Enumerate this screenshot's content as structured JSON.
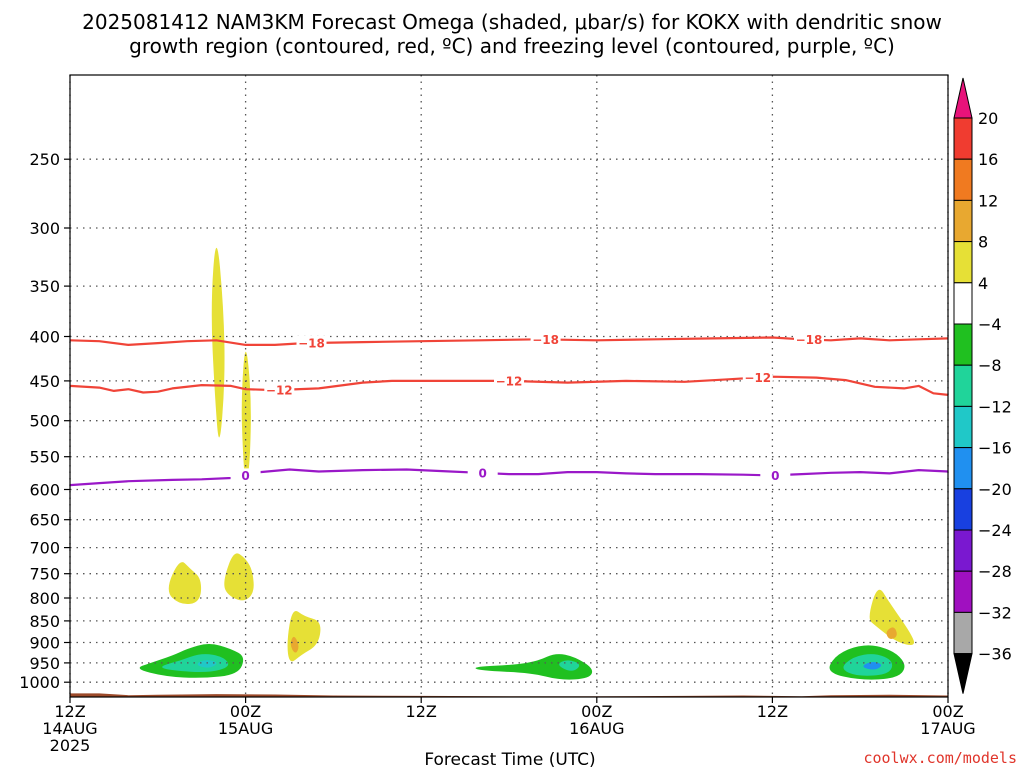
{
  "title_line1": "2025081412 NAM3KM Forecast Omega (shaded, μbar/s) for KOKX with dendritic snow",
  "title_line2": "growth region (contoured, red, ºC) and freezing level (contoured, purple, ºC)",
  "credit": "coolwx.com/models",
  "colors": {
    "background": "#ffffff",
    "ground": "#9c4a2a",
    "isotherm_red": "#f04438",
    "freezing_purple": "#9a18c8",
    "grid": "#555555"
  },
  "chart_data": {
    "type": "heatmap",
    "title": "2025081412 NAM3KM Forecast Omega (shaded, μbar/s) for KOKX with dendritic snow growth region (contoured, red, ºC) and freezing level (contoured, purple, ºC)",
    "xlabel": "Forecast Time (UTC)",
    "ylabel": "",
    "xlim": [
      0,
      60
    ],
    "ylim": [
      1040,
      200
    ],
    "y_scale": "log-pressure",
    "grid": true,
    "x_ticks": [
      {
        "h": 0,
        "line1": "12Z",
        "line2": "14AUG",
        "line3": "2025"
      },
      {
        "h": 12,
        "line1": "00Z",
        "line2": "15AUG",
        "line3": ""
      },
      {
        "h": 24,
        "line1": "12Z",
        "line2": "",
        "line3": ""
      },
      {
        "h": 36,
        "line1": "00Z",
        "line2": "16AUG",
        "line3": ""
      },
      {
        "h": 48,
        "line1": "12Z",
        "line2": "",
        "line3": ""
      },
      {
        "h": 60,
        "line1": "00Z",
        "line2": "17AUG",
        "line3": ""
      }
    ],
    "y_ticks": [
      250,
      300,
      350,
      400,
      450,
      500,
      550,
      600,
      650,
      700,
      750,
      800,
      850,
      900,
      950,
      1000
    ],
    "colorbar": {
      "labels": [
        "20",
        "16",
        "12",
        "8",
        "4",
        "−4",
        "−8",
        "−12",
        "−16",
        "−20",
        "−24",
        "−28",
        "−32",
        "−36"
      ],
      "colors": [
        "#e8137a",
        "#f03c30",
        "#f07a20",
        "#e8a830",
        "#e6e036",
        "#ffffff",
        "#20c020",
        "#20d49a",
        "#20c8c8",
        "#2090f0",
        "#1840e0",
        "#7a18d0",
        "#a010c0",
        "#a8a8a8",
        "#000000"
      ]
    },
    "contour_lines": [
      {
        "name": "-18",
        "label": "−18",
        "color": "#f04438",
        "points": [
          [
            0,
            404
          ],
          [
            2,
            405
          ],
          [
            4,
            409
          ],
          [
            6,
            407
          ],
          [
            8,
            405
          ],
          [
            10,
            404
          ],
          [
            12,
            409
          ],
          [
            14,
            409
          ],
          [
            16,
            407
          ],
          [
            20,
            406
          ],
          [
            24,
            405
          ],
          [
            28,
            404
          ],
          [
            32,
            403
          ],
          [
            36,
            404
          ],
          [
            40,
            403
          ],
          [
            44,
            402
          ],
          [
            48,
            401
          ],
          [
            50,
            403
          ],
          [
            52,
            404
          ],
          [
            54,
            402
          ],
          [
            56,
            404
          ],
          [
            58,
            403
          ],
          [
            60,
            402
          ]
        ],
        "label_h": [
          16.5,
          32.5,
          50.5
        ]
      },
      {
        "name": "-12",
        "label": "−12",
        "color": "#f04438",
        "points": [
          [
            0,
            456
          ],
          [
            2,
            458
          ],
          [
            3,
            462
          ],
          [
            4,
            460
          ],
          [
            5,
            464
          ],
          [
            6,
            463
          ],
          [
            7,
            459
          ],
          [
            9,
            455
          ],
          [
            11,
            456
          ],
          [
            12,
            460
          ],
          [
            14,
            461
          ],
          [
            17,
            459
          ],
          [
            20,
            452
          ],
          [
            22,
            450
          ],
          [
            26,
            450
          ],
          [
            30,
            450
          ],
          [
            34,
            452
          ],
          [
            38,
            450
          ],
          [
            42,
            451
          ],
          [
            45,
            448
          ],
          [
            48,
            445
          ],
          [
            51,
            446
          ],
          [
            53,
            449
          ],
          [
            55,
            457
          ],
          [
            57,
            459
          ],
          [
            58,
            456
          ],
          [
            59,
            465
          ],
          [
            60,
            467
          ]
        ],
        "label_h": [
          14.3,
          30.0,
          47.0
        ]
      },
      {
        "name": "0",
        "label": "0",
        "color": "#9a18c8",
        "points": [
          [
            0,
            593
          ],
          [
            2,
            590
          ],
          [
            4,
            587
          ],
          [
            7,
            585
          ],
          [
            9,
            584
          ],
          [
            11,
            582
          ],
          [
            12,
            578
          ],
          [
            13,
            573
          ],
          [
            15,
            569
          ],
          [
            17,
            572
          ],
          [
            20,
            570
          ],
          [
            23,
            569
          ],
          [
            26,
            572
          ],
          [
            28,
            574
          ],
          [
            30,
            576
          ],
          [
            32,
            576
          ],
          [
            34,
            573
          ],
          [
            36,
            573
          ],
          [
            38,
            575
          ],
          [
            40,
            576
          ],
          [
            43,
            576
          ],
          [
            46,
            577
          ],
          [
            48,
            578
          ],
          [
            50,
            576
          ],
          [
            52,
            574
          ],
          [
            54,
            573
          ],
          [
            56,
            575
          ],
          [
            58,
            570
          ],
          [
            60,
            572
          ]
        ],
        "label_h": [
          12.0,
          28.2,
          48.2
        ]
      }
    ],
    "omega_regions": [
      {
        "name": "yellow-upper-left",
        "level": "4 to 8",
        "points": [
          [
            10.5,
            760
          ],
          [
            11.2,
            705
          ],
          [
            12.0,
            720
          ],
          [
            12.5,
            745
          ],
          [
            12.6,
            790
          ],
          [
            11.8,
            810
          ],
          [
            10.6,
            790
          ]
        ]
      },
      {
        "name": "yellow-upper-left-b",
        "level": "4 to 8",
        "points": [
          [
            6.5,
            785
          ],
          [
            7.5,
            720
          ],
          [
            8.2,
            740
          ],
          [
            9.0,
            760
          ],
          [
            8.9,
            810
          ],
          [
            7.5,
            815
          ]
        ]
      },
      {
        "name": "yellow-tall-column-a",
        "level": "4 to 8",
        "points": [
          [
            9.6,
            370
          ],
          [
            10.0,
            300
          ],
          [
            10.5,
            370
          ],
          [
            10.6,
            450
          ],
          [
            10.2,
            545
          ],
          [
            9.9,
            470
          ]
        ]
      },
      {
        "name": "yellow-tall-column-b",
        "level": "4 to 8",
        "points": [
          [
            11.7,
            470
          ],
          [
            12.0,
            400
          ],
          [
            12.4,
            470
          ],
          [
            12.3,
            560
          ],
          [
            12.0,
            600
          ],
          [
            11.8,
            540
          ]
        ]
      },
      {
        "name": "yellow-mid-left",
        "level": "4 to 8",
        "points": [
          [
            14.8,
            900
          ],
          [
            15.2,
            820
          ],
          [
            16.0,
            840
          ],
          [
            17.2,
            850
          ],
          [
            17.0,
            905
          ],
          [
            15.8,
            930
          ],
          [
            15.0,
            955
          ]
        ]
      },
      {
        "name": "orange-mid-left",
        "level": "8 to 12",
        "points": [
          [
            15.0,
            905
          ],
          [
            15.3,
            880
          ],
          [
            15.7,
            910
          ],
          [
            15.4,
            930
          ]
        ]
      },
      {
        "name": "yellow-right",
        "level": "4 to 8",
        "points": [
          [
            54.5,
            845
          ],
          [
            55.2,
            770
          ],
          [
            56.0,
            810
          ],
          [
            57.5,
            880
          ],
          [
            57.8,
            910
          ],
          [
            56.5,
            900
          ],
          [
            55.0,
            860
          ]
        ]
      },
      {
        "name": "orange-right",
        "level": "8 to 12",
        "points": [
          [
            55.7,
            875
          ],
          [
            56.3,
            860
          ],
          [
            56.6,
            885
          ],
          [
            56.0,
            895
          ]
        ]
      },
      {
        "name": "green-left",
        "level": "-4 to -8",
        "points": [
          [
            4.4,
            965
          ],
          [
            5.5,
            950
          ],
          [
            7.0,
            932
          ],
          [
            8.0,
            915
          ],
          [
            9.5,
            900
          ],
          [
            11.0,
            915
          ],
          [
            12.0,
            935
          ],
          [
            11.5,
            980
          ],
          [
            9.0,
            990
          ],
          [
            6.5,
            985
          ]
        ]
      },
      {
        "name": "teal-left",
        "level": "-8 to -12",
        "points": [
          [
            6.0,
            960
          ],
          [
            7.5,
            945
          ],
          [
            9.0,
            925
          ],
          [
            10.5,
            935
          ],
          [
            11.0,
            960
          ],
          [
            9.5,
            975
          ],
          [
            7.0,
            970
          ]
        ]
      },
      {
        "name": "cyan-left",
        "level": "-12 to -16",
        "points": [
          [
            8.5,
            955
          ],
          [
            9.3,
            940
          ],
          [
            10.2,
            950
          ],
          [
            9.5,
            965
          ]
        ]
      },
      {
        "name": "green-center",
        "level": "-4 to -8",
        "points": [
          [
            27.5,
            960
          ],
          [
            30.5,
            955
          ],
          [
            32.0,
            945
          ],
          [
            33.2,
            925
          ],
          [
            34.5,
            935
          ],
          [
            35.8,
            965
          ],
          [
            35.5,
            990
          ],
          [
            33.5,
            995
          ],
          [
            31.5,
            975
          ],
          [
            28.0,
            970
          ]
        ]
      },
      {
        "name": "teal-center",
        "level": "-8 to -12",
        "points": [
          [
            33.2,
            955
          ],
          [
            34.0,
            940
          ],
          [
            35.0,
            955
          ],
          [
            34.3,
            975
          ]
        ]
      },
      {
        "name": "green-right",
        "level": "-4 to -8",
        "points": [
          [
            51.7,
            975
          ],
          [
            52.2,
            935
          ],
          [
            53.5,
            910
          ],
          [
            55.0,
            905
          ],
          [
            56.5,
            925
          ],
          [
            57.2,
            960
          ],
          [
            56.5,
            990
          ],
          [
            54.0,
            995
          ]
        ]
      },
      {
        "name": "teal-right",
        "level": "-8 to -12",
        "points": [
          [
            52.6,
            965
          ],
          [
            53.5,
            935
          ],
          [
            55.0,
            925
          ],
          [
            56.3,
            945
          ],
          [
            56.0,
            980
          ],
          [
            53.8,
            985
          ]
        ]
      },
      {
        "name": "blue-right",
        "level": "-16 to -20",
        "points": [
          [
            54.0,
            960
          ],
          [
            54.8,
            945
          ],
          [
            55.6,
            955
          ],
          [
            55.0,
            970
          ]
        ]
      }
    ],
    "ground_top": [
      [
        0,
        1030
      ],
      [
        2,
        1030
      ],
      [
        4,
        1035
      ],
      [
        6,
        1034
      ],
      [
        10,
        1032
      ],
      [
        14,
        1033
      ],
      [
        18,
        1036
      ],
      [
        24,
        1037
      ],
      [
        30,
        1038
      ],
      [
        36,
        1038
      ],
      [
        42,
        1037
      ],
      [
        46,
        1036
      ],
      [
        50,
        1038
      ],
      [
        52,
        1035
      ],
      [
        56,
        1034
      ],
      [
        60,
        1036
      ]
    ]
  }
}
